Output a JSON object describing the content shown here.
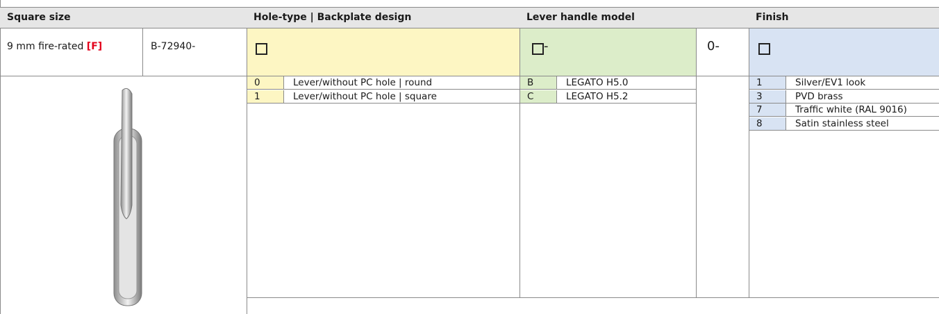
{
  "header": {
    "square_size": "Square size",
    "hole_type": "Hole-type | Backplate design",
    "lever_model": "Lever handle model",
    "finish": "Finish"
  },
  "config": {
    "fire_rated": "9 mm fire-rated",
    "fire_code": "[F]",
    "article": "B-72940-",
    "lever_suffix": "-",
    "fixed_code": "0-"
  },
  "hole_options": [
    {
      "code": "0",
      "label": "Lever/without PC hole | round"
    },
    {
      "code": "1",
      "label": "Lever/without PC hole | square"
    }
  ],
  "lever_options": [
    {
      "code": "B",
      "label": "LEGATO H5.0"
    },
    {
      "code": "C",
      "label": "LEGATO H5.2"
    }
  ],
  "finish_options": [
    {
      "code": "1",
      "label": "Silver/EV1 look"
    },
    {
      "code": "3",
      "label": "PVD brass"
    },
    {
      "code": "7",
      "label": "Traffic white (RAL 9016)"
    },
    {
      "code": "8",
      "label": "Satin stainless steel"
    }
  ]
}
